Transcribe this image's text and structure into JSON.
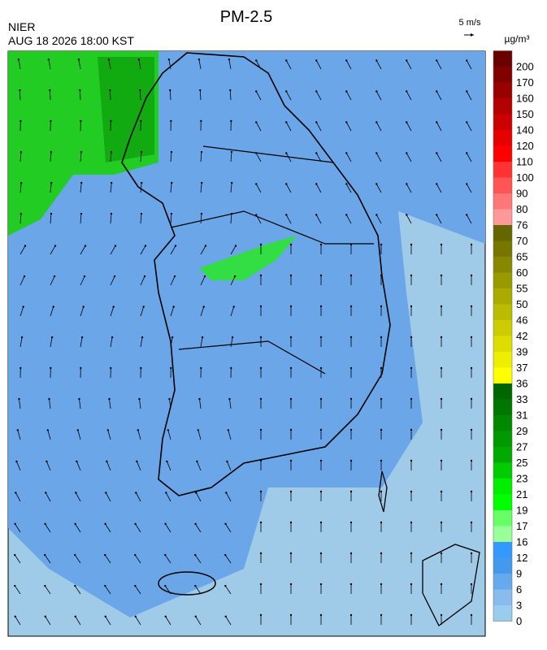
{
  "header": {
    "title": "PM-2.5",
    "source": "NIER",
    "datetime": "AUG 18 2026 18:00 KST",
    "wind_scale": "5 m/s",
    "unit": "µg/m³"
  },
  "colorbar": {
    "labels": [
      "200",
      "170",
      "160",
      "150",
      "140",
      "120",
      "110",
      "100",
      "90",
      "80",
      "76",
      "70",
      "65",
      "60",
      "55",
      "50",
      "46",
      "42",
      "39",
      "37",
      "36",
      "33",
      "31",
      "29",
      "27",
      "25",
      "23",
      "21",
      "19",
      "17",
      "16",
      "12",
      "9",
      "6",
      "3",
      "0"
    ],
    "colors": [
      "#6b0000",
      "#800000",
      "#990000",
      "#b30000",
      "#cc0000",
      "#e60000",
      "#ff0000",
      "#ff3333",
      "#ff5555",
      "#ff7777",
      "#ff9999",
      "#666600",
      "#777700",
      "#888800",
      "#999900",
      "#aaaa00",
      "#bbbb00",
      "#cccc00",
      "#dddd00",
      "#eeee00",
      "#ffff00",
      "#006600",
      "#007700",
      "#008800",
      "#009900",
      "#00aa00",
      "#00cc00",
      "#00ee00",
      "#00ff00",
      "#66ff66",
      "#99ff99",
      "#3399ff",
      "#4499ee",
      "#66aaee",
      "#88bbee",
      "#99ccee"
    ]
  }
}
